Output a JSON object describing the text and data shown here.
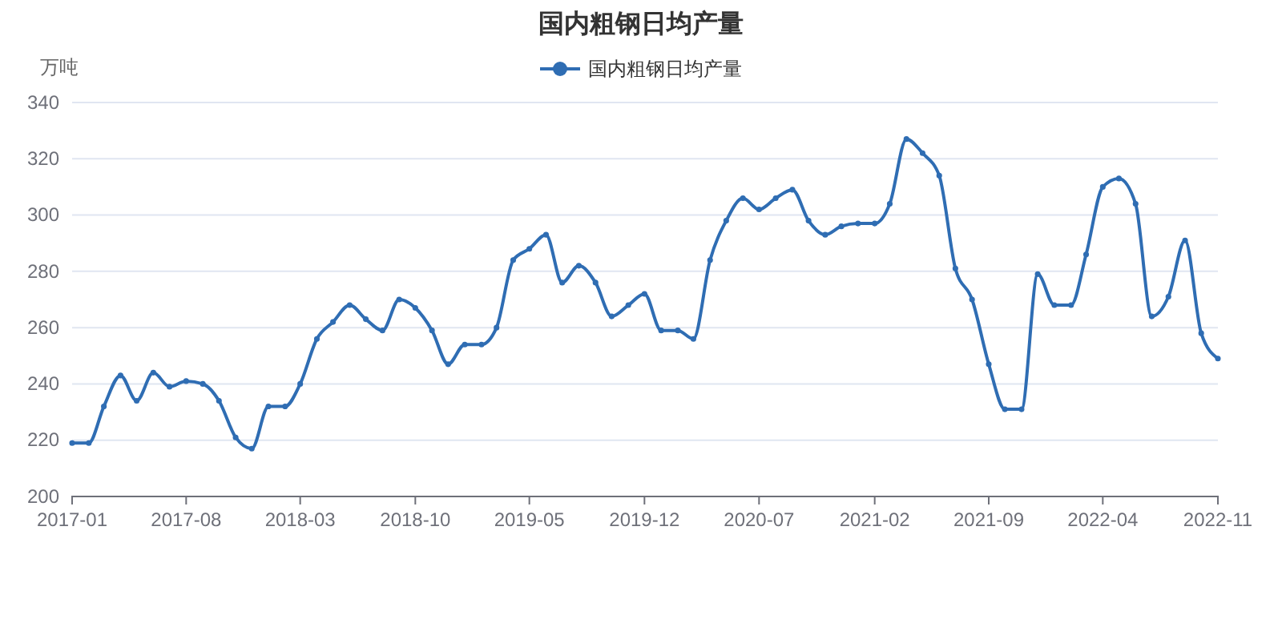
{
  "chart_data": {
    "type": "line",
    "title": "国内粗钢日均产量",
    "ylabel": "万吨",
    "x": [
      "2017-01",
      "2017-02",
      "2017-03",
      "2017-04",
      "2017-05",
      "2017-06",
      "2017-07",
      "2017-08",
      "2017-09",
      "2017-10",
      "2017-11",
      "2017-12",
      "2018-01",
      "2018-02",
      "2018-03",
      "2018-04",
      "2018-05",
      "2018-06",
      "2018-07",
      "2018-08",
      "2018-09",
      "2018-10",
      "2018-11",
      "2018-12",
      "2019-01",
      "2019-02",
      "2019-03",
      "2019-04",
      "2019-05",
      "2019-06",
      "2019-07",
      "2019-08",
      "2019-09",
      "2019-10",
      "2019-11",
      "2019-12",
      "2020-01",
      "2020-02",
      "2020-03",
      "2020-04",
      "2020-05",
      "2020-06",
      "2020-07",
      "2020-08",
      "2020-09",
      "2020-10",
      "2020-11",
      "2020-12",
      "2021-01",
      "2021-02",
      "2021-03",
      "2021-04",
      "2021-05",
      "2021-06",
      "2021-07",
      "2021-08",
      "2021-09",
      "2021-10",
      "2021-11",
      "2021-12",
      "2022-01",
      "2022-02",
      "2022-03",
      "2022-04",
      "2022-05",
      "2022-06",
      "2022-07",
      "2022-08",
      "2022-09",
      "2022-10",
      "2022-11"
    ],
    "series": [
      {
        "name": "国内粗钢日均产量",
        "color": "#2f6db3",
        "values": [
          219,
          219,
          232,
          243,
          234,
          244,
          239,
          241,
          240,
          234,
          221,
          217,
          232,
          232,
          240,
          256,
          262,
          268,
          263,
          259,
          270,
          267,
          259,
          247,
          254,
          254,
          260,
          284,
          288,
          293,
          276,
          282,
          276,
          264,
          268,
          272,
          259,
          259,
          256,
          284,
          298,
          306,
          302,
          306,
          309,
          298,
          293,
          296,
          297,
          297,
          304,
          327,
          322,
          314,
          281,
          270,
          247,
          231,
          231,
          279,
          268,
          268,
          286,
          310,
          313,
          304,
          264,
          271,
          291,
          258,
          249
        ]
      }
    ],
    "xlim": [
      "2017-01",
      "2022-11"
    ],
    "xticks": [
      "2017-01",
      "2017-08",
      "2018-03",
      "2018-10",
      "2019-05",
      "2019-12",
      "2020-07",
      "2021-02",
      "2021-09",
      "2022-04",
      "2022-11"
    ],
    "ylim": [
      200,
      340
    ],
    "yticks": [
      200,
      220,
      240,
      260,
      280,
      300,
      320,
      340
    ],
    "grid": "y",
    "legend": "top",
    "marker": "circle",
    "line_style": "solid"
  }
}
